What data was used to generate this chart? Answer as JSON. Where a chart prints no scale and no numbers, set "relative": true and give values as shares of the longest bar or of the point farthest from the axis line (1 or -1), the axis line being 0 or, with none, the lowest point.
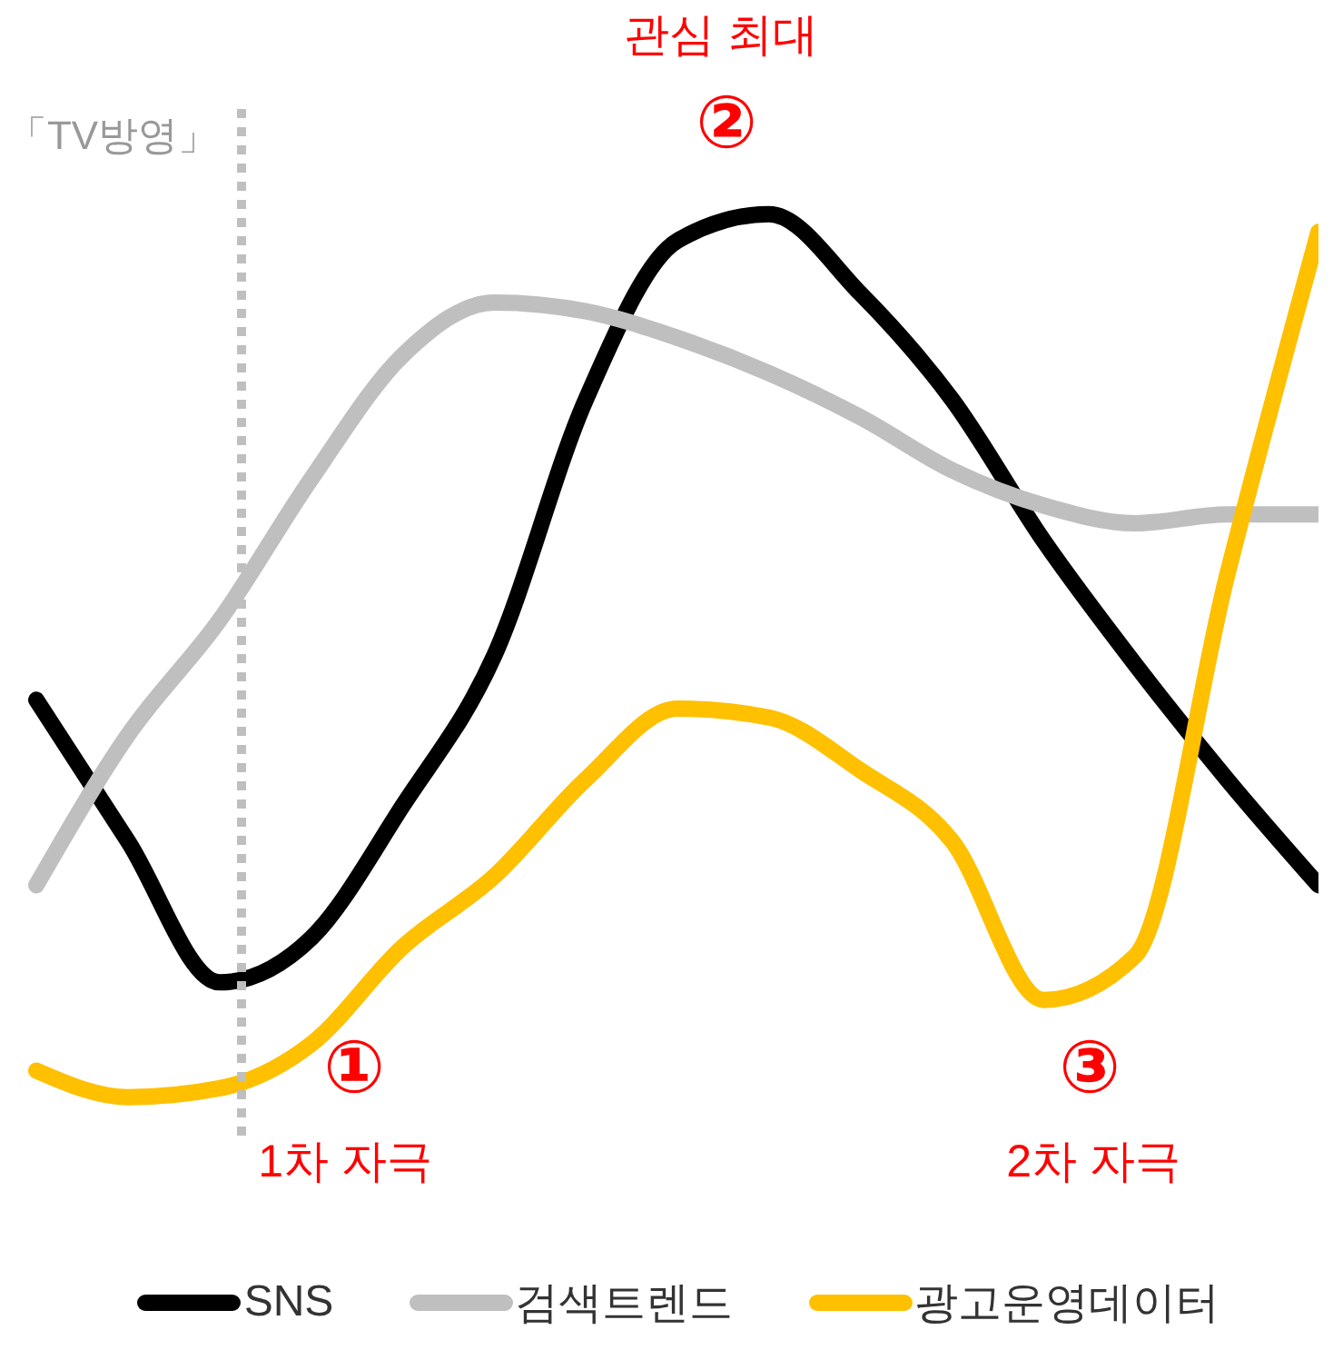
{
  "chart_data": {
    "type": "line",
    "relative": true,
    "categories": [
      null,
      null,
      null,
      null,
      null,
      null,
      null,
      null,
      null,
      null,
      null,
      null,
      null,
      null,
      null
    ],
    "legend": "bottom",
    "grid": false,
    "marker": "none",
    "line_style": "solid",
    "series": [
      {
        "name": "SNS",
        "color": "#000000",
        "values": [
          0.45,
          0.29,
          0.13,
          0.18,
          0.33,
          0.5,
          0.79,
          0.97,
          1.0,
          0.91,
          0.79,
          0.63,
          0.49,
          0.36,
          0.24
        ]
      },
      {
        "name": "검색트렌드",
        "color": "#bfbfbf",
        "values": [
          0.24,
          0.41,
          0.54,
          0.7,
          0.84,
          0.9,
          0.89,
          0.86,
          0.82,
          0.77,
          0.71,
          0.67,
          0.65,
          0.66,
          0.66
        ]
      },
      {
        "name": "광고운영데이터",
        "color": "#ffc000",
        "values": [
          0.03,
          0.0,
          0.01,
          0.06,
          0.17,
          0.25,
          0.36,
          0.44,
          0.43,
          0.37,
          0.29,
          0.11,
          0.16,
          0.59,
          0.98
        ]
      }
    ],
    "annotations": [
      "「TV방영」",
      "①",
      "1차 자극",
      "②",
      "관심 최대",
      "③",
      "2차 자극"
    ]
  }
}
